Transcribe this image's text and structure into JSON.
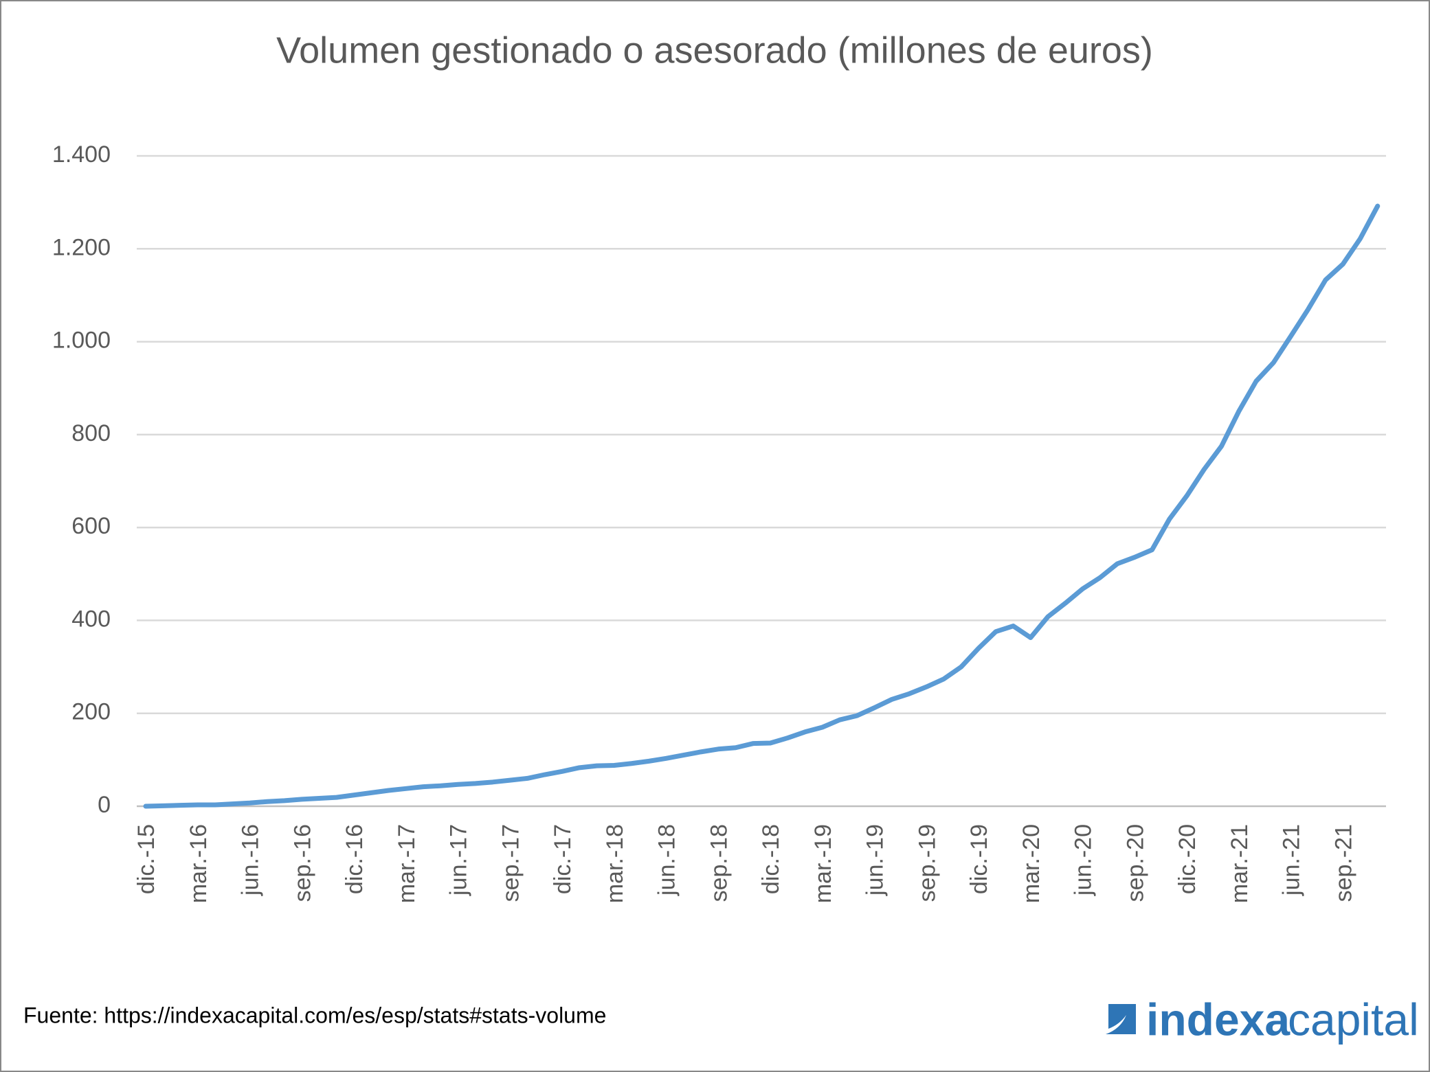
{
  "chart_data": {
    "type": "line",
    "title": "Volumen gestionado o asesorado (millones de euros)",
    "categories": [
      "dic.-15",
      null,
      null,
      "mar.-16",
      null,
      null,
      "jun.-16",
      null,
      null,
      "sep.-16",
      null,
      null,
      "dic.-16",
      null,
      null,
      "mar.-17",
      null,
      null,
      "jun.-17",
      null,
      null,
      "sep.-17",
      null,
      null,
      "dic.-17",
      null,
      null,
      "mar.-18",
      null,
      null,
      "jun.-18",
      null,
      null,
      "sep.-18",
      null,
      null,
      "dic.-18",
      null,
      null,
      "mar.-19",
      null,
      null,
      "jun.-19",
      null,
      null,
      "sep.-19",
      null,
      null,
      "dic.-19",
      null,
      null,
      "mar.-20",
      null,
      null,
      "jun.-20",
      null,
      null,
      "sep.-20",
      null,
      null,
      "dic.-20",
      null,
      null,
      "mar.-21",
      null,
      null,
      "jun.-21",
      null,
      null,
      "sep.-21",
      null,
      null
    ],
    "series": [
      {
        "name": "Volumen",
        "color": "#5b9bd5",
        "values": [
          0,
          1,
          2,
          3,
          3,
          5,
          7,
          10,
          12,
          15,
          17,
          19,
          24,
          29,
          34,
          38,
          42,
          44,
          47,
          49,
          52,
          56,
          60,
          68,
          75,
          83,
          87,
          88,
          92,
          97,
          103,
          110,
          117,
          123,
          126,
          135,
          136,
          147,
          160,
          170,
          186,
          195,
          212,
          230,
          242,
          257,
          274,
          300,
          340,
          376,
          388,
          363,
          408,
          437,
          468,
          492,
          522,
          536,
          552,
          618,
          668,
          725,
          775,
          850,
          915,
          955,
          1012,
          1070,
          1133,
          1167,
          1222,
          1292
        ]
      }
    ],
    "ylim": [
      0,
      1400
    ],
    "yticks": [
      {
        "value": 0,
        "label": "0"
      },
      {
        "value": 200,
        "label": "200"
      },
      {
        "value": 400,
        "label": "400"
      },
      {
        "value": 600,
        "label": "600"
      },
      {
        "value": 800,
        "label": "800"
      },
      {
        "value": 1000,
        "label": "1.000"
      },
      {
        "value": 1200,
        "label": "1.200"
      },
      {
        "value": 1400,
        "label": "1.400"
      }
    ],
    "grid": true,
    "source": "Fuente: https://indexacapital.com/es/esp/stats#stats-volume",
    "logo": {
      "part1": "indexa",
      "part2": "capital"
    }
  }
}
